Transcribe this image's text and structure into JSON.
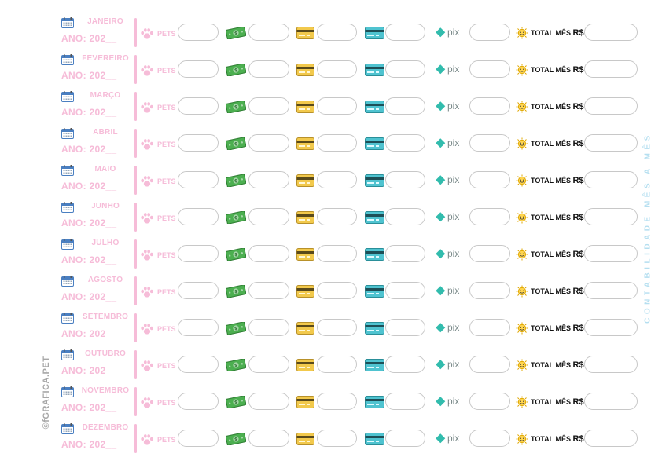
{
  "months": [
    "JANEIRO",
    "FEVEREIRO",
    "MARÇO",
    "ABRIL",
    "MAIO",
    "JUNHO",
    "JULHO",
    "AGOSTO",
    "SETEMBRO",
    "OUTUBRO",
    "NOVEMBRO",
    "DEZEMBRO"
  ],
  "year_label": "ANO: 202__",
  "pets_label": "PETS",
  "cash_icon_text": "$",
  "pix_label": "pix",
  "total_label": "TOTAL MÊS",
  "currency_label": "R$",
  "side_left_text": "©fGRAFICA.PET",
  "side_right_text": "CONTABILIDADE MÊS A MÊS",
  "colors": {
    "pink": "#f6bcd8",
    "pix": "#32bcad",
    "cash": "#4caf50",
    "card_yellow": "#f2c94c",
    "card_teal": "#4fc3d0",
    "side_blue": "#b5dff0"
  },
  "icons": [
    "calendar-icon",
    "paw-icon",
    "cash-icon",
    "credit-card-icon",
    "debit-card-icon",
    "pix-icon",
    "sun-icon"
  ]
}
